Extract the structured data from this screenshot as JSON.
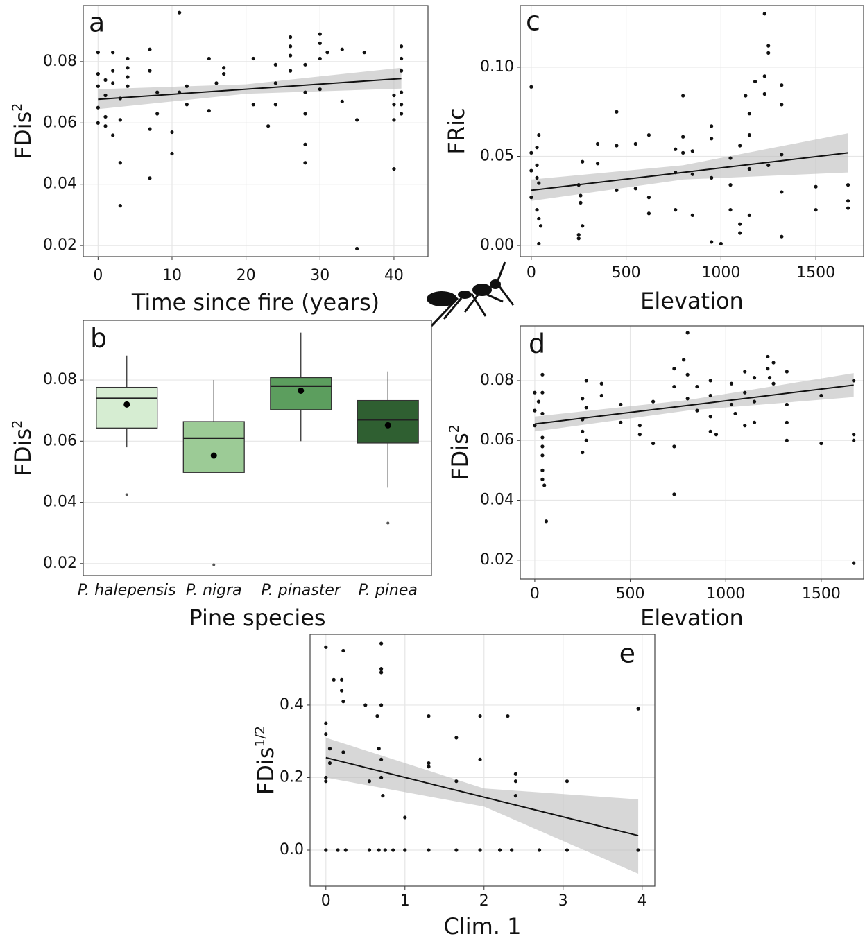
{
  "chart_data": [
    {
      "type": "scatter",
      "panel_label": "a",
      "x_label": "Time since fire (years)",
      "y_label": "FDis",
      "y_label_sup": "2",
      "xlim": [
        -2.0,
        44.6
      ],
      "ylim": [
        0.0164,
        0.0983
      ],
      "xticks": [
        0,
        10,
        20,
        30,
        40
      ],
      "yticks": [
        0.02,
        0.04,
        0.06,
        0.08
      ],
      "grid": true,
      "x": [
        0,
        0,
        0,
        0,
        0,
        1,
        1,
        1,
        1,
        2,
        2,
        2,
        2,
        3,
        3,
        3,
        3,
        4,
        4,
        4,
        4,
        7,
        7,
        7,
        7,
        8,
        8,
        10,
        10,
        11,
        11,
        12,
        12,
        15,
        15,
        16,
        17,
        17,
        21,
        21,
        23,
        24,
        24,
        24,
        26,
        26,
        26,
        26,
        28,
        28,
        28,
        28,
        28,
        30,
        30,
        30,
        30,
        31,
        33,
        33,
        35,
        35,
        36,
        40,
        40,
        40,
        40,
        41,
        41,
        41,
        41,
        41,
        41
      ],
      "y": [
        0.083,
        0.076,
        0.072,
        0.065,
        0.06,
        0.074,
        0.069,
        0.062,
        0.059,
        0.083,
        0.077,
        0.073,
        0.056,
        0.068,
        0.061,
        0.047,
        0.033,
        0.081,
        0.078,
        0.075,
        0.072,
        0.084,
        0.077,
        0.058,
        0.042,
        0.07,
        0.063,
        0.057,
        0.05,
        0.096,
        0.07,
        0.072,
        0.066,
        0.081,
        0.064,
        0.073,
        0.078,
        0.076,
        0.081,
        0.066,
        0.059,
        0.079,
        0.073,
        0.066,
        0.088,
        0.085,
        0.082,
        0.077,
        0.079,
        0.07,
        0.063,
        0.053,
        0.047,
        0.089,
        0.086,
        0.081,
        0.071,
        0.083,
        0.084,
        0.067,
        0.061,
        0.019,
        0.083,
        0.069,
        0.066,
        0.061,
        0.045,
        0.085,
        0.081,
        0.077,
        0.07,
        0.066,
        0.063
      ],
      "fit": {
        "x": [
          0,
          20,
          41
        ],
        "y": [
          0.0677,
          0.071,
          0.0745
        ],
        "lower": [
          0.0645,
          0.0695,
          0.0712
        ],
        "upper": [
          0.071,
          0.0726,
          0.078
        ]
      }
    },
    {
      "type": "box",
      "panel_label": "b",
      "x_label": "Pine species",
      "y_label": "FDis",
      "y_label_sup": "2",
      "ylim": [
        0.0161,
        0.0995
      ],
      "yticks": [
        0.02,
        0.04,
        0.06,
        0.08
      ],
      "grid": true,
      "boxes": [
        {
          "name": "P. halepensis",
          "color": "#d6edd2",
          "low": 0.058,
          "q1": 0.0643,
          "median": 0.074,
          "q3": 0.0776,
          "high": 0.088,
          "mean": 0.072,
          "outliers": [
            0.0425
          ]
        },
        {
          "name": "P. nigra",
          "color": "#9ccb96",
          "low": 0.0498,
          "q1": 0.0498,
          "median": 0.061,
          "q3": 0.0664,
          "high": 0.08,
          "mean": 0.0553,
          "outliers": [
            0.0196
          ]
        },
        {
          "name": "P. pinaster",
          "color": "#5c9e5e",
          "low": 0.06,
          "q1": 0.0703,
          "median": 0.078,
          "q3": 0.0808,
          "high": 0.0955,
          "mean": 0.0765,
          "outliers": []
        },
        {
          "name": "P. pinea",
          "color": "#2f5f31",
          "low": 0.0448,
          "q1": 0.0594,
          "median": 0.067,
          "q3": 0.0733,
          "high": 0.0828,
          "mean": 0.0652,
          "outliers": [
            0.0332
          ]
        }
      ]
    },
    {
      "type": "scatter",
      "panel_label": "c",
      "x_label": "Elevation",
      "y_label": "FRic",
      "xlim": [
        -58,
        1752
      ],
      "ylim": [
        -0.0062,
        0.1346
      ],
      "xticks": [
        0,
        500,
        1000,
        1500
      ],
      "yticks": [
        {
          "value": 0,
          "label": "0.00"
        },
        0.05,
        {
          "value": 0.1,
          "label": "0.10"
        }
      ],
      "grid": true,
      "x": [
        0,
        0,
        0,
        0,
        30,
        30,
        30,
        30,
        40,
        40,
        40,
        40,
        50,
        250,
        250,
        250,
        260,
        260,
        270,
        270,
        350,
        350,
        450,
        450,
        450,
        550,
        550,
        620,
        620,
        620,
        760,
        760,
        760,
        800,
        800,
        800,
        850,
        850,
        850,
        950,
        950,
        950,
        950,
        1000,
        1050,
        1050,
        1050,
        1100,
        1100,
        1100,
        1130,
        1150,
        1150,
        1150,
        1150,
        1180,
        1230,
        1230,
        1230,
        1250,
        1250,
        1250,
        1320,
        1320,
        1320,
        1320,
        1320,
        1500,
        1500,
        1670,
        1670,
        1670
      ],
      "y": [
        0.089,
        0.052,
        0.042,
        0.027,
        0.055,
        0.045,
        0.038,
        0.02,
        0.062,
        0.035,
        0.015,
        0.001,
        0.011,
        0.034,
        0.006,
        0.004,
        0.028,
        0.024,
        0.047,
        0.011,
        0.057,
        0.046,
        0.075,
        0.056,
        0.031,
        0.057,
        0.032,
        0.062,
        0.027,
        0.018,
        0.054,
        0.041,
        0.02,
        0.084,
        0.061,
        0.052,
        0.053,
        0.04,
        0.017,
        0.067,
        0.06,
        0.038,
        0.002,
        0.001,
        0.049,
        0.034,
        0.02,
        0.056,
        0.012,
        0.007,
        0.084,
        0.074,
        0.062,
        0.043,
        0.017,
        0.092,
        0.13,
        0.095,
        0.085,
        0.112,
        0.108,
        0.045,
        0.09,
        0.079,
        0.051,
        0.03,
        0.005,
        0.033,
        0.02,
        0.034,
        0.025,
        0.021
      ],
      "fit": {
        "x": [
          0,
          800,
          1670
        ],
        "y": [
          0.031,
          0.041,
          0.052
        ],
        "lower": [
          0.025,
          0.037,
          0.041
        ],
        "upper": [
          0.037,
          0.045,
          0.063
        ]
      }
    },
    {
      "type": "scatter",
      "panel_label": "d",
      "x_label": "Elevation",
      "y_label": "FDis",
      "y_label_sup": "2",
      "xlim": [
        -76,
        1722
      ],
      "ylim": [
        0.0137,
        0.0983
      ],
      "xticks": [
        0,
        500,
        1000,
        1500
      ],
      "yticks": [
        0.02,
        0.04,
        0.06,
        0.08
      ],
      "grid": true,
      "x": [
        0,
        0,
        0,
        20,
        40,
        40,
        40,
        40,
        40,
        40,
        40,
        40,
        50,
        60,
        250,
        250,
        250,
        250,
        270,
        270,
        270,
        350,
        350,
        450,
        450,
        550,
        550,
        620,
        620,
        730,
        730,
        730,
        730,
        780,
        800,
        800,
        800,
        850,
        850,
        920,
        920,
        920,
        920,
        950,
        1030,
        1030,
        1050,
        1100,
        1100,
        1100,
        1150,
        1150,
        1150,
        1220,
        1220,
        1230,
        1250,
        1250,
        1320,
        1320,
        1320,
        1320,
        1500,
        1500,
        1670,
        1670,
        1670,
        1670
      ],
      "y": [
        0.076,
        0.07,
        0.065,
        0.073,
        0.082,
        0.076,
        0.069,
        0.061,
        0.058,
        0.055,
        0.05,
        0.047,
        0.045,
        0.033,
        0.074,
        0.067,
        0.063,
        0.056,
        0.08,
        0.071,
        0.06,
        0.079,
        0.075,
        0.072,
        0.066,
        0.065,
        0.062,
        0.073,
        0.059,
        0.084,
        0.078,
        0.058,
        0.042,
        0.087,
        0.096,
        0.082,
        0.074,
        0.078,
        0.07,
        0.08,
        0.075,
        0.068,
        0.063,
        0.062,
        0.079,
        0.072,
        0.069,
        0.083,
        0.076,
        0.065,
        0.081,
        0.073,
        0.066,
        0.088,
        0.084,
        0.081,
        0.086,
        0.079,
        0.083,
        0.072,
        0.066,
        0.06,
        0.075,
        0.059,
        0.08,
        0.062,
        0.06,
        0.019
      ],
      "fit": {
        "x": [
          0,
          800,
          1670
        ],
        "y": [
          0.0655,
          0.0717,
          0.0785
        ],
        "lower": [
          0.063,
          0.07,
          0.0745
        ],
        "upper": [
          0.068,
          0.0735,
          0.0825
        ]
      }
    },
    {
      "type": "scatter",
      "panel_label": "e",
      "x_label": "Clim. 1",
      "y_label": "FDis",
      "y_label_sup": "1/2",
      "xlim": [
        -0.2,
        4.16
      ],
      "ylim": [
        -0.0995,
        0.595
      ],
      "xticks": [
        0,
        1,
        2,
        3,
        4
      ],
      "yticks": [
        {
          "value": 0,
          "label": "0.0"
        },
        0.2,
        0.4
      ],
      "grid": true,
      "x": [
        0,
        0,
        0,
        0,
        0,
        0,
        0.05,
        0.05,
        0.1,
        0.15,
        0.2,
        0.2,
        0.22,
        0.22,
        0.22,
        0.25,
        0.5,
        0.55,
        0.55,
        0.65,
        0.67,
        0.67,
        0.7,
        0.7,
        0.7,
        0.7,
        0.7,
        0.7,
        0.72,
        0.75,
        0.85,
        1.0,
        1.0,
        1.3,
        1.3,
        1.3,
        1.3,
        1.65,
        1.65,
        1.65,
        1.95,
        1.95,
        1.95,
        2.2,
        2.3,
        2.35,
        2.4,
        2.4,
        2.4,
        2.7,
        3.05,
        3.05,
        3.95,
        3.95
      ],
      "y": [
        0.56,
        0.35,
        0.32,
        0.2,
        0.19,
        0,
        0.28,
        0.24,
        0.47,
        0,
        0.47,
        0.44,
        0.55,
        0.41,
        0.27,
        0,
        0.4,
        0.19,
        0,
        0.37,
        0.28,
        0,
        0.57,
        0.5,
        0.49,
        0.4,
        0.25,
        0.2,
        0.15,
        0,
        0,
        0.09,
        0,
        0.37,
        0.24,
        0.23,
        0,
        0.31,
        0.19,
        0,
        0.37,
        0.25,
        0,
        0,
        0.37,
        0,
        0.21,
        0.19,
        0.15,
        0,
        0.19,
        0,
        0.39,
        0
      ],
      "fit": {
        "x": [
          0,
          2,
          3.95
        ],
        "y": [
          0.255,
          0.146,
          0.04
        ],
        "lower": [
          0.2,
          0.12,
          -0.065
        ],
        "upper": [
          0.31,
          0.17,
          0.14
        ]
      }
    }
  ]
}
